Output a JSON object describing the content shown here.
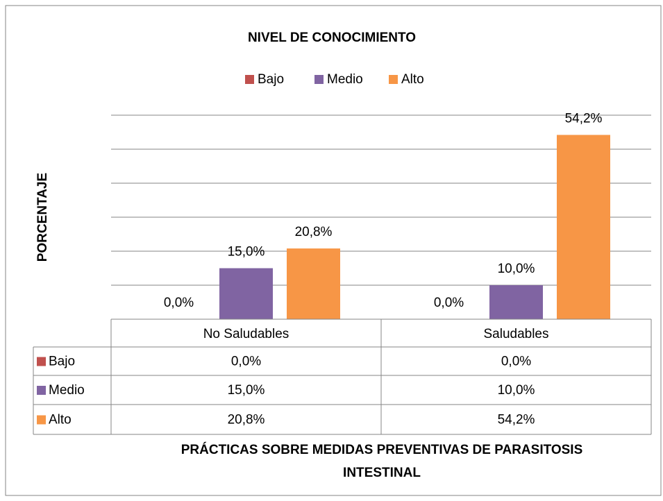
{
  "chart_data": {
    "type": "bar",
    "title": "NIVEL DE CONOCIMIENTO",
    "y_label": "PORCENTAJE",
    "x_label": "PRÁCTICAS SOBRE MEDIDAS PREVENTIVAS DE PARASITOSIS INTESTINAL",
    "categories": [
      "No Saludables",
      "Saludables"
    ],
    "series": [
      {
        "name": "Bajo",
        "color": "#c0504d",
        "values": [
          0,
          0
        ],
        "value_labels": [
          "0,0%",
          "0,0%"
        ]
      },
      {
        "name": "Medio",
        "color": "#8064a2",
        "values": [
          15,
          10
        ],
        "value_labels": [
          "15,0%",
          "10,0%"
        ]
      },
      {
        "name": "Alto",
        "color": "#f79646",
        "values": [
          20.8,
          54.2
        ],
        "value_labels": [
          "20,8%",
          "54,2%"
        ]
      }
    ],
    "ylim": [
      0,
      60
    ],
    "yticks": [
      0,
      10,
      20,
      30,
      40,
      50,
      60
    ],
    "grid": true,
    "legend": "top"
  }
}
